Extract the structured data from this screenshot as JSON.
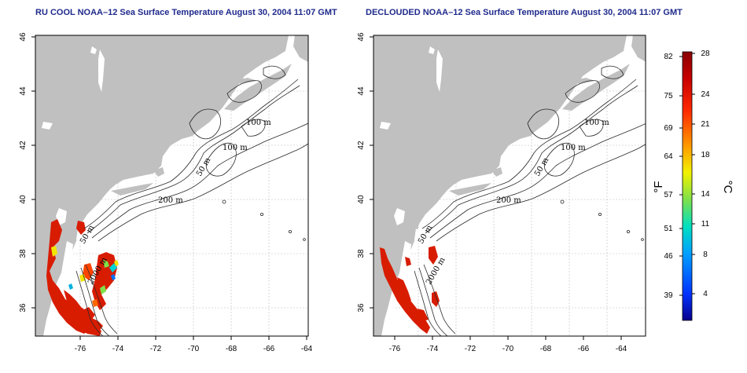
{
  "maps": [
    {
      "title": "RU COOL NOAA–12 Sea Surface Temperature August 30, 2004 11:07 GMT",
      "lon_ticks": [
        "-76",
        "-74",
        "-72",
        "-70",
        "-68",
        "-66",
        "-64"
      ],
      "lat_ticks": [
        "46",
        "44",
        "42",
        "40",
        "38",
        "36"
      ],
      "contour_labels": [
        "100 m",
        "100 m",
        "50 m",
        "200 m",
        "50 m",
        "2000 m"
      ]
    },
    {
      "title": "DECLOUDED NOAA–12 Sea Surface Temperature August 30, 2004 11:07 GMT",
      "lon_ticks": [
        "-76",
        "-74",
        "-72",
        "-70",
        "-68",
        "-66",
        "-64"
      ],
      "lat_ticks": [
        "46",
        "44",
        "42",
        "40",
        "38",
        "36"
      ],
      "contour_labels": [
        "100 m",
        "100 m",
        "50 m",
        "200 m",
        "50 m",
        "2000 m"
      ]
    }
  ],
  "colorbar": {
    "fahrenheit_labels": [
      "82",
      "75",
      "69",
      "64",
      "57",
      "51",
      "46",
      "39"
    ],
    "celsius_labels": [
      "28",
      "24",
      "21",
      "18",
      "14",
      "11",
      "8",
      "4"
    ],
    "unit_left": "°F",
    "unit_right": "°C",
    "colors": [
      "#08008c",
      "#0033ff",
      "#00a0ff",
      "#00e0c0",
      "#7fe04a",
      "#f2f200",
      "#ff9900",
      "#ff2a00",
      "#b80000",
      "#8a0000"
    ]
  },
  "colors": {
    "land": "#c0c0c0",
    "ocean": "#ffffff",
    "title": "#1f2a8c",
    "sst_hot": "#d81c00"
  }
}
